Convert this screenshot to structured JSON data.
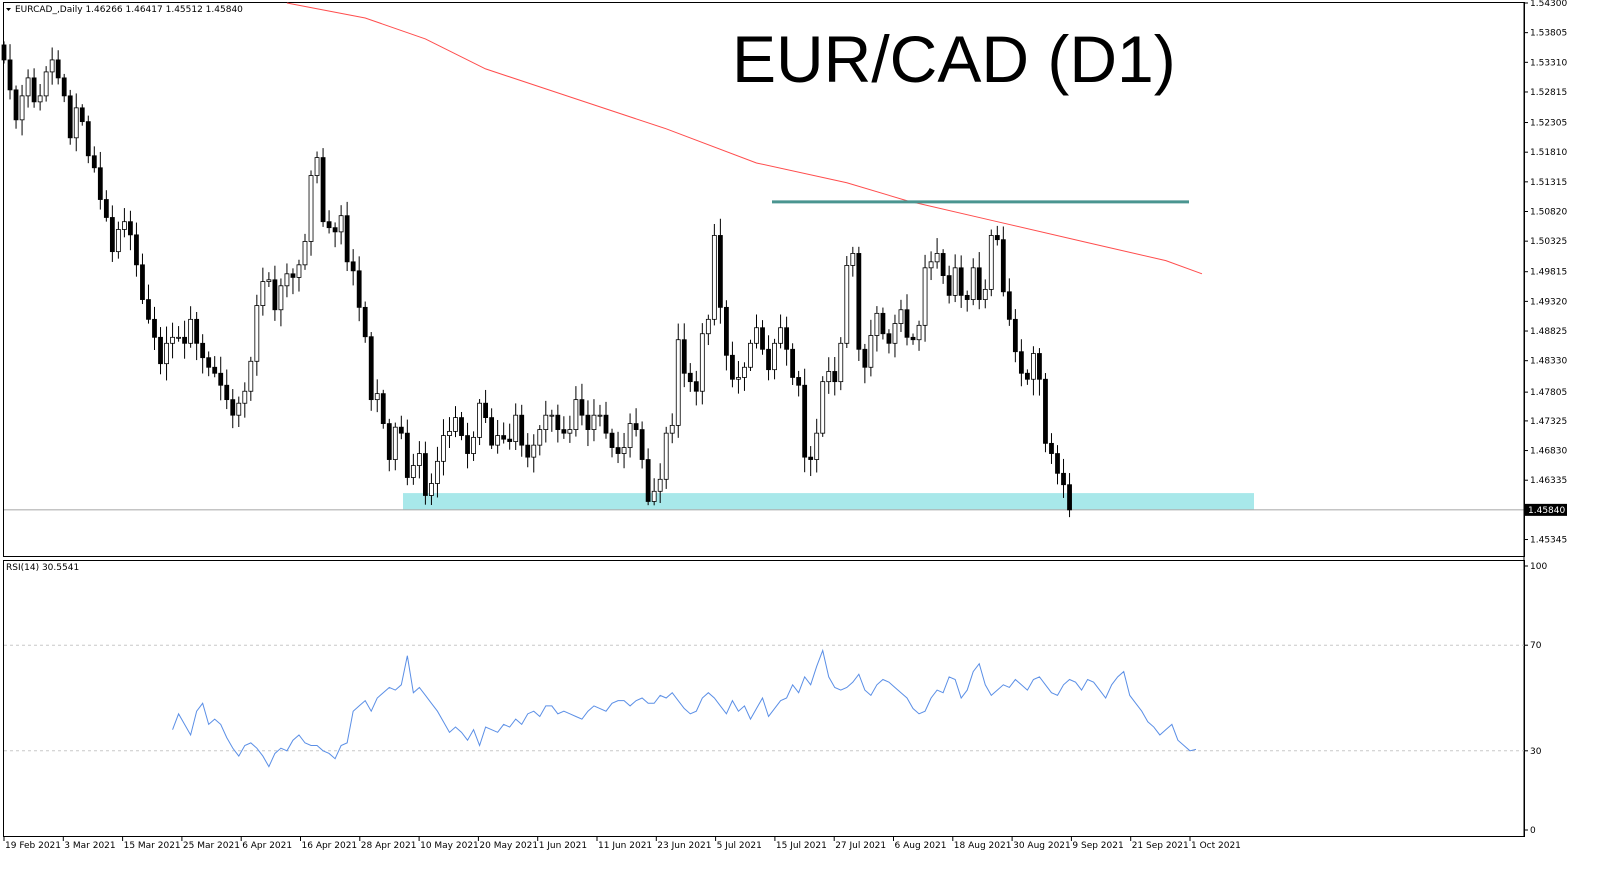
{
  "header": {
    "symbol_line": "EURCAD_,Daily  1.46266 1.46417 1.45512 1.45840",
    "big_title": "EUR/CAD (D1)",
    "rsi_label": "RSI(14) 30.5541"
  },
  "colors": {
    "up_candle": "#ffffff",
    "down_candle": "#000000",
    "ma_line": "#ff4d4d",
    "resistance": "#4a9590",
    "support_zone": "#a8e8ea",
    "rsi_line": "#5b8fe6",
    "level_dash": "#c8c8c8"
  },
  "chart_data": [
    {
      "type": "candlestick",
      "title": "EUR/CAD (D1)",
      "price_axis": {
        "ylim": [
          1.4507,
          1.543
        ],
        "ticks": [
          "1.54300",
          "1.53805",
          "1.53310",
          "1.52815",
          "1.52305",
          "1.51810",
          "1.51315",
          "1.50820",
          "1.50325",
          "1.49815",
          "1.49320",
          "1.48825",
          "1.48330",
          "1.47805",
          "1.47325",
          "1.46830",
          "1.46335",
          "1.45345"
        ],
        "current_price": "1.45840"
      },
      "date_axis": {
        "labels": [
          "19 Feb 2021",
          "3 Mar 2021",
          "15 Mar 2021",
          "25 Mar 2021",
          "6 Apr 2021",
          "16 Apr 2021",
          "28 Apr 2021",
          "10 May 2021",
          "20 May 2021",
          "1 Jun 2021",
          "11 Jun 2021",
          "23 Jun 2021",
          "5 Jul 2021",
          "15 Jul 2021",
          "27 Jul 2021",
          "6 Aug 2021",
          "18 Aug 2021",
          "30 Aug 2021",
          "9 Sep 2021",
          "21 Sep 2021",
          "1 Oct 2021"
        ]
      },
      "close": [
        1.5335,
        1.5285,
        1.5235,
        1.5275,
        1.5305,
        1.5265,
        1.5275,
        1.5315,
        1.5335,
        1.5305,
        1.5275,
        1.5205,
        1.5255,
        1.5232,
        1.5175,
        1.5155,
        1.5102,
        1.5072,
        1.5015,
        1.5052,
        1.5065,
        1.5043,
        1.4993,
        1.4935,
        1.4902,
        1.4872,
        1.4828,
        1.4862,
        1.4872,
        1.4872,
        1.4862,
        1.4902,
        1.4862,
        1.4838,
        1.4822,
        1.4812,
        1.4792,
        1.4768,
        1.4742,
        1.4762,
        1.4782,
        1.4832,
        1.4925,
        1.4965,
        1.4968,
        1.4918,
        1.4958,
        1.4978,
        1.4972,
        1.4993,
        1.5032,
        1.5142,
        1.5172,
        1.5065,
        1.5055,
        1.5048,
        1.5075,
        1.4998,
        1.4983,
        1.4922,
        1.4873,
        1.4768,
        1.4778,
        1.4728,
        1.4668,
        1.4722,
        1.4712,
        1.4638,
        1.4658,
        1.4678,
        1.4608,
        1.4628,
        1.4665,
        1.4708,
        1.4715,
        1.4738,
        1.4708,
        1.4678,
        1.4705,
        1.4762,
        1.4738,
        1.4692,
        1.4708,
        1.4702,
        1.4698,
        1.4742,
        1.4692,
        1.4672,
        1.4692,
        1.4718,
        1.4742,
        1.4742,
        1.4718,
        1.4712,
        1.4718,
        1.4768,
        1.4742,
        1.4718,
        1.4742,
        1.4742,
        1.4712,
        1.4688,
        1.4678,
        1.4688,
        1.4728,
        1.4718,
        1.4668,
        1.4598,
        1.4615,
        1.4635,
        1.4712,
        1.4725,
        1.4868,
        1.4812,
        1.4798,
        1.4782,
        1.4878,
        1.4902,
        1.5042,
        1.4922,
        1.4842,
        1.4802,
        1.4805,
        1.4822,
        1.4862,
        1.4888,
        1.4852,
        1.4818,
        1.4862,
        1.4888,
        1.4852,
        1.4805,
        1.4792,
        1.4672,
        1.4668,
        1.4712,
        1.4798,
        1.4815,
        1.4798,
        1.4862,
        1.4992,
        1.5012,
        1.4852,
        1.4822,
        1.4875,
        1.4912,
        1.4878,
        1.4862,
        1.4895,
        1.4918,
        1.4872,
        1.4868,
        1.4892,
        1.4988,
        1.4998,
        1.5012,
        1.4975,
        1.4942,
        1.4988,
        1.4942,
        1.4935,
        1.4988,
        1.4935,
        1.4952,
        1.5042,
        1.5035,
        1.4948,
        1.4902,
        1.4848,
        1.4812,
        1.4802,
        1.4845,
        1.4802,
        1.4695,
        1.4678,
        1.4645,
        1.4626,
        1.4584
      ],
      "resistance_level": 1.5098,
      "support_zone": [
        1.4585,
        1.4612
      ],
      "moving_average": [
        {
          "x_index": 47,
          "value": 1.543
        },
        {
          "x_index": 60,
          "value": 1.5405
        },
        {
          "x_index": 70,
          "value": 1.537
        },
        {
          "x_index": 80,
          "value": 1.532
        },
        {
          "x_index": 95,
          "value": 1.527
        },
        {
          "x_index": 110,
          "value": 1.522
        },
        {
          "x_index": 125,
          "value": 1.5163
        },
        {
          "x_index": 140,
          "value": 1.513
        },
        {
          "x_index": 150,
          "value": 1.51
        },
        {
          "x_index": 165,
          "value": 1.5065
        },
        {
          "x_index": 180,
          "value": 1.503
        },
        {
          "x_index": 193,
          "value": 1.5
        },
        {
          "x_index": 199,
          "value": 1.4978
        }
      ]
    },
    {
      "type": "line",
      "title": "RSI(14) 30.5541",
      "ylim": [
        0,
        100
      ],
      "ticks": [
        "100",
        "70",
        "30",
        "0"
      ],
      "levels": [
        70,
        30
      ],
      "values": [
        38,
        44,
        40,
        36,
        45,
        48,
        40,
        42,
        40,
        35,
        31,
        28,
        32,
        33,
        31,
        28,
        24,
        29,
        31,
        30,
        34,
        36,
        33,
        32,
        32,
        30,
        29,
        27,
        32,
        33,
        45,
        47,
        49,
        45,
        50,
        52,
        54,
        53,
        55,
        66,
        52,
        54,
        51,
        48,
        45,
        41,
        37,
        39,
        37,
        34,
        38,
        32,
        39,
        38,
        37,
        40,
        39,
        42,
        40,
        44,
        45,
        43,
        47,
        47,
        44,
        45,
        44,
        43,
        42,
        45,
        47,
        46,
        45,
        48,
        49,
        49,
        47,
        49,
        50,
        48,
        48,
        51,
        50,
        52,
        49,
        46,
        44,
        45,
        50,
        52,
        50,
        47,
        44,
        49,
        45,
        47,
        42,
        46,
        50,
        43,
        46,
        49,
        50,
        55,
        52,
        58,
        55,
        62,
        68,
        58,
        54,
        53,
        54,
        56,
        59,
        53,
        51,
        55,
        57,
        56,
        54,
        52,
        50,
        46,
        44,
        45,
        50,
        53,
        52,
        58,
        57,
        50,
        53,
        60,
        63,
        55,
        51,
        53,
        55,
        54,
        57,
        55,
        53,
        57,
        58,
        55,
        52,
        51,
        55,
        57,
        56,
        53,
        57,
        56,
        53,
        50,
        55,
        58,
        60,
        51,
        48,
        45,
        41,
        39,
        36,
        38,
        40,
        34,
        32,
        30,
        30.5541
      ]
    }
  ]
}
